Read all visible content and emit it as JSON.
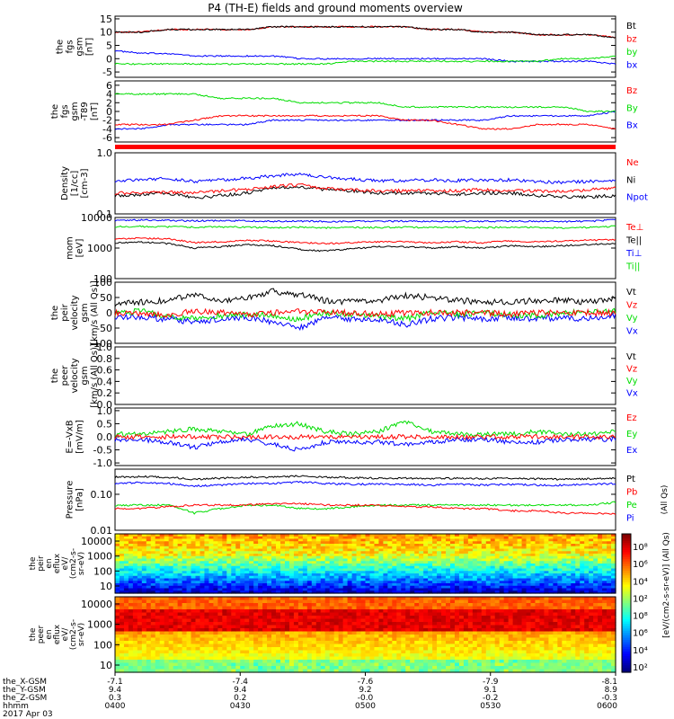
{
  "title": "P4 (TH-E) fields and ground moments overview",
  "colors": {
    "black": "#000000",
    "red": "#ff0000",
    "green": "#00dd00",
    "blue": "#0000ff"
  },
  "chart_data": [
    {
      "type": "line",
      "id": "p1",
      "ylabel": [
        "the",
        "fgs",
        "gsm",
        "[nT]"
      ],
      "yticks": [
        "15",
        "10",
        "5",
        "0",
        "-5"
      ],
      "ylim": [
        -7,
        16
      ],
      "legend": [
        {
          "name": "Bt",
          "color": "black"
        },
        {
          "name": "bz",
          "color": "red"
        },
        {
          "name": "by",
          "color": "green"
        },
        {
          "name": "bx",
          "color": "blue"
        }
      ],
      "series": [
        {
          "name": "Bt",
          "color": "black",
          "values": [
            10,
            10,
            11,
            11,
            11,
            11,
            12,
            12,
            12,
            12,
            12,
            12,
            11,
            11,
            10,
            10,
            9,
            9,
            9,
            8
          ]
        },
        {
          "name": "bz",
          "color": "red",
          "values": [
            10,
            10,
            11,
            11,
            11,
            11,
            12,
            12,
            12,
            12,
            12,
            12,
            11,
            11,
            10,
            10,
            9,
            9,
            9,
            8
          ]
        },
        {
          "name": "by",
          "color": "green",
          "values": [
            -2,
            -2,
            -2,
            -2,
            -2,
            -2,
            -2,
            -2,
            -2,
            -1,
            -1,
            -1,
            -1,
            -1,
            -1,
            -1,
            -1,
            0,
            0,
            1
          ]
        },
        {
          "name": "bx",
          "color": "blue",
          "values": [
            3,
            2,
            2,
            1,
            1,
            1,
            1,
            0,
            0,
            0,
            0,
            0,
            0,
            0,
            0,
            -1,
            -1,
            -1,
            -1,
            -2
          ]
        }
      ]
    },
    {
      "type": "line",
      "id": "p2",
      "ylabel": [
        "the",
        "fgs",
        "gsm",
        "-T89",
        "[nT]"
      ],
      "yticks": [
        "6",
        "4",
        "2",
        "0",
        "-2",
        "-4",
        "-6"
      ],
      "ylim": [
        -7,
        7
      ],
      "legend": [
        {
          "name": "Bz",
          "color": "red"
        },
        {
          "name": "By",
          "color": "green"
        },
        {
          "name": "Bx",
          "color": "blue"
        }
      ],
      "series": [
        {
          "name": "Bz",
          "color": "red",
          "values": [
            -3,
            -3,
            -3,
            -2,
            -1,
            -1,
            -1,
            -1,
            -1,
            -1,
            -1,
            -2,
            -2,
            -3,
            -4,
            -4,
            -3,
            -3,
            -3,
            -4
          ]
        },
        {
          "name": "By",
          "color": "green",
          "values": [
            4,
            4,
            4,
            4,
            3,
            3,
            3,
            2,
            2,
            2,
            2,
            1,
            1,
            1,
            1,
            1,
            1,
            1,
            0,
            0
          ]
        },
        {
          "name": "Bx",
          "color": "blue",
          "values": [
            -4,
            -4,
            -3,
            -3,
            -3,
            -3,
            -2,
            -2,
            -2,
            -2,
            -2,
            -2,
            -2,
            -2,
            -2,
            -1,
            -1,
            -1,
            -1,
            0
          ]
        }
      ]
    },
    {
      "type": "line",
      "id": "p4",
      "ylabel": [
        "Density",
        "[1/cc]",
        "[cm-3]"
      ],
      "yticks": [
        "1.0",
        "0.1"
      ],
      "ylim": [
        0.1,
        1.0
      ],
      "log": true,
      "legend": [
        {
          "name": "Ne",
          "color": "red"
        },
        {
          "name": "Ni",
          "color": "black"
        },
        {
          "name": "Npot",
          "color": "blue"
        }
      ],
      "series": [
        {
          "name": "Ne",
          "color": "red",
          "values": [
            0.22,
            0.22,
            0.23,
            0.22,
            0.24,
            0.25,
            0.28,
            0.3,
            0.26,
            0.25,
            0.24,
            0.24,
            0.24,
            0.24,
            0.25,
            0.24,
            0.24,
            0.23,
            0.25,
            0.26
          ]
        },
        {
          "name": "Ni",
          "color": "black",
          "values": [
            0.2,
            0.21,
            0.22,
            0.18,
            0.2,
            0.22,
            0.26,
            0.28,
            0.25,
            0.24,
            0.22,
            0.22,
            0.22,
            0.21,
            0.22,
            0.22,
            0.2,
            0.19,
            0.19,
            0.2
          ]
        },
        {
          "name": "Npot",
          "color": "blue",
          "values": [
            0.35,
            0.36,
            0.38,
            0.34,
            0.36,
            0.38,
            0.42,
            0.45,
            0.4,
            0.37,
            0.35,
            0.35,
            0.36,
            0.35,
            0.36,
            0.36,
            0.34,
            0.33,
            0.34,
            0.35
          ]
        }
      ]
    },
    {
      "type": "line",
      "id": "p5",
      "ylabel": [
        "mom",
        "[eV]"
      ],
      "yticks": [
        "10000",
        "1000",
        "100"
      ],
      "ylim": [
        100,
        10000
      ],
      "log": true,
      "legend": [
        {
          "name": "Te⊥",
          "color": "red"
        },
        {
          "name": "Te||",
          "color": "black"
        },
        {
          "name": "Ti⊥",
          "color": "blue"
        },
        {
          "name": "Ti||",
          "color": "green"
        }
      ],
      "series": [
        {
          "name": "Te⊥",
          "color": "red",
          "values": [
            2000,
            2100,
            2000,
            1500,
            1600,
            1800,
            1700,
            1500,
            1400,
            1500,
            1600,
            1600,
            1500,
            1600,
            1500,
            1700,
            1600,
            1700,
            1800,
            1900
          ]
        },
        {
          "name": "Te||",
          "color": "black",
          "values": [
            1500,
            1600,
            1400,
            1000,
            1100,
            1300,
            1200,
            900,
            800,
            950,
            1100,
            1100,
            1000,
            1100,
            1000,
            1200,
            1100,
            1200,
            1300,
            1400
          ]
        },
        {
          "name": "Ti⊥",
          "color": "blue",
          "values": [
            8000,
            8200,
            8000,
            7800,
            7900,
            7800,
            7500,
            7600,
            7400,
            7500,
            7500,
            7600,
            7500,
            7600,
            7500,
            7600,
            7500,
            7400,
            7500,
            8500
          ]
        },
        {
          "name": "Ti||",
          "color": "green",
          "values": [
            5000,
            5100,
            5000,
            4800,
            4900,
            4800,
            4700,
            4800,
            4600,
            4700,
            4700,
            4800,
            4700,
            4800,
            4700,
            4800,
            4700,
            4600,
            4700,
            5200
          ]
        }
      ]
    },
    {
      "type": "line",
      "id": "p6",
      "ylabel": [
        "the",
        "peir",
        "velocity",
        "gsm",
        "[km/s (All Qs)]"
      ],
      "yticks": [
        "100",
        "50",
        "0",
        "-50",
        "-100"
      ],
      "ylim": [
        -100,
        100
      ],
      "legend": [
        {
          "name": "Vt",
          "color": "black"
        },
        {
          "name": "Vz",
          "color": "red"
        },
        {
          "name": "Vy",
          "color": "green"
        },
        {
          "name": "Vx",
          "color": "blue"
        }
      ],
      "series": [
        {
          "name": "Vt",
          "color": "black",
          "values": [
            30,
            35,
            40,
            60,
            40,
            50,
            70,
            60,
            40,
            35,
            40,
            55,
            50,
            40,
            35,
            35,
            40,
            40,
            35,
            50
          ]
        },
        {
          "name": "Vz",
          "color": "red",
          "values": [
            0,
            0,
            -5,
            5,
            0,
            -5,
            0,
            5,
            0,
            0,
            -5,
            0,
            0,
            0,
            0,
            -5,
            0,
            0,
            0,
            0
          ]
        },
        {
          "name": "Vy",
          "color": "green",
          "values": [
            0,
            5,
            -10,
            -20,
            -10,
            -5,
            -10,
            -20,
            0,
            -5,
            -10,
            -20,
            0,
            -5,
            0,
            -5,
            -10,
            0,
            0,
            5
          ]
        },
        {
          "name": "Vx",
          "color": "blue",
          "values": [
            -10,
            -15,
            -20,
            -30,
            -20,
            -15,
            -30,
            -50,
            -15,
            -20,
            -20,
            -40,
            -20,
            -15,
            -20,
            -15,
            -20,
            -15,
            -20,
            -10
          ]
        }
      ]
    },
    {
      "type": "line",
      "id": "p7",
      "ylabel": [
        "the",
        "peer",
        "velocity",
        "gsm",
        "[km/s (All Qs)]"
      ],
      "yticks": [
        "1.0",
        "0.8",
        "0.6",
        "0.4",
        "0.2",
        "0.0"
      ],
      "ylim": [
        0,
        1
      ],
      "legend": [
        {
          "name": "Vt",
          "color": "black"
        },
        {
          "name": "Vz",
          "color": "red"
        },
        {
          "name": "Vy",
          "color": "green"
        },
        {
          "name": "Vx",
          "color": "blue"
        }
      ],
      "series": []
    },
    {
      "type": "line",
      "id": "p8",
      "ylabel": [
        "E=-VxB",
        "[mV/m]"
      ],
      "yticks": [
        "1.0",
        "0.5",
        "0.0",
        "-0.5",
        "-1.0"
      ],
      "ylim": [
        -1.1,
        1.1
      ],
      "legend": [
        {
          "name": "Ez",
          "color": "red"
        },
        {
          "name": "Ey",
          "color": "green"
        },
        {
          "name": "Ex",
          "color": "blue"
        }
      ],
      "series": [
        {
          "name": "Ez",
          "color": "red",
          "values": [
            0,
            0,
            0,
            0,
            0,
            0,
            0,
            0,
            0,
            0,
            0,
            0,
            0,
            0,
            0,
            0,
            0,
            0,
            0,
            0
          ]
        },
        {
          "name": "Ey",
          "color": "green",
          "values": [
            0.1,
            0.1,
            0.2,
            0.3,
            0.2,
            0.1,
            0.4,
            0.5,
            0.2,
            0.1,
            0.2,
            0.6,
            0.2,
            0.1,
            0.1,
            0.1,
            0.2,
            0.1,
            0.1,
            0.2
          ]
        },
        {
          "name": "Ex",
          "color": "blue",
          "values": [
            -0.1,
            -0.1,
            -0.2,
            -0.4,
            -0.2,
            -0.1,
            -0.3,
            -0.5,
            -0.2,
            -0.2,
            -0.2,
            -0.3,
            -0.2,
            -0.1,
            -0.1,
            -0.2,
            -0.2,
            -0.1,
            -0.1,
            -0.1
          ]
        }
      ]
    },
    {
      "type": "line",
      "id": "p9",
      "ylabel": [
        "Pressure",
        "[nPa]"
      ],
      "yticks": [
        "0.10",
        "0.01"
      ],
      "ylim": [
        0.01,
        0.5
      ],
      "log": true,
      "legend": [
        {
          "name": "Pt",
          "color": "black"
        },
        {
          "name": "Pb",
          "color": "red"
        },
        {
          "name": "Pe",
          "color": "green"
        },
        {
          "name": "Pi",
          "color": "blue"
        },
        {
          "name": "(All Qs)",
          "color": "black"
        }
      ],
      "series": [
        {
          "name": "Pt",
          "color": "black",
          "values": [
            0.3,
            0.31,
            0.3,
            0.26,
            0.28,
            0.3,
            0.3,
            0.32,
            0.3,
            0.29,
            0.28,
            0.28,
            0.27,
            0.28,
            0.27,
            0.28,
            0.27,
            0.26,
            0.27,
            0.28
          ]
        },
        {
          "name": "Pb",
          "color": "red",
          "values": [
            0.04,
            0.04,
            0.045,
            0.05,
            0.05,
            0.05,
            0.055,
            0.055,
            0.05,
            0.05,
            0.05,
            0.045,
            0.045,
            0.04,
            0.04,
            0.035,
            0.035,
            0.03,
            0.03,
            0.028
          ]
        },
        {
          "name": "Pe",
          "color": "green",
          "values": [
            0.05,
            0.05,
            0.05,
            0.03,
            0.04,
            0.05,
            0.05,
            0.04,
            0.04,
            0.045,
            0.05,
            0.05,
            0.05,
            0.05,
            0.05,
            0.05,
            0.05,
            0.05,
            0.05,
            0.06
          ]
        },
        {
          "name": "Pi",
          "color": "blue",
          "values": [
            0.2,
            0.21,
            0.2,
            0.17,
            0.18,
            0.2,
            0.2,
            0.22,
            0.2,
            0.19,
            0.19,
            0.19,
            0.18,
            0.19,
            0.18,
            0.19,
            0.18,
            0.18,
            0.19,
            0.2
          ]
        }
      ]
    }
  ],
  "spectrograms": [
    {
      "id": "s1",
      "type": "heatmap",
      "ylabel": [
        "the",
        "peir",
        "en",
        "eflux",
        "eV/",
        "(cm2-s-",
        "sr-eV)"
      ],
      "yticks": [
        "10000",
        "1000",
        "100",
        "10"
      ]
    },
    {
      "id": "s2",
      "type": "heatmap",
      "ylabel": [
        "the",
        "peer",
        "en",
        "eflux",
        "eV/",
        "(cm2-s-",
        "sr-eV)"
      ],
      "yticks": [
        "10000",
        "1000",
        "100",
        "10"
      ]
    }
  ],
  "colorbar": {
    "type": "heatmap",
    "ticks": [
      "10⁸",
      "10⁶",
      "10⁴",
      "10²",
      "10⁸",
      "10⁶",
      "10⁴",
      "10²"
    ],
    "label": "[eV/(cm2-s-sr-eV)] (All Qs)"
  },
  "axis": {
    "rows": [
      {
        "name": "the_X-GSM",
        "values": [
          "-7.1",
          "-7.4",
          "-7.6",
          "-7.9",
          "-8.1"
        ]
      },
      {
        "name": "the_Y-GSM",
        "values": [
          "9.4",
          "9.4",
          "9.2",
          "9.1",
          "8.9"
        ]
      },
      {
        "name": "the_Z-GSM",
        "values": [
          "0.3",
          "0.2",
          "-0.0",
          "-0.2",
          "-0.3"
        ]
      },
      {
        "name": "hhmm",
        "values": [
          "0400",
          "0430",
          "0500",
          "0530",
          "0600"
        ]
      }
    ],
    "date": "2017 Apr 03"
  }
}
